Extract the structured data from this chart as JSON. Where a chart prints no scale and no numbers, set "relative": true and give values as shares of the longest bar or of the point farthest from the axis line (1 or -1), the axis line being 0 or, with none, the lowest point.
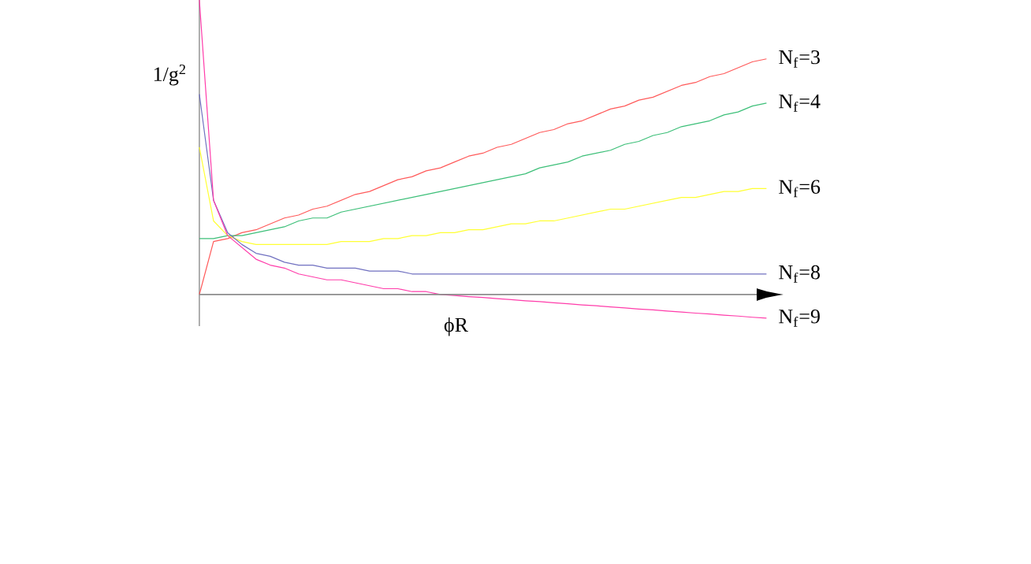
{
  "chart_data": {
    "type": "line",
    "relative": true,
    "xlabel": "ϕR",
    "ylabel": "1/g$^{2}$",
    "categories": [
      null,
      null,
      null,
      null,
      null,
      null,
      null,
      null,
      null,
      null,
      null,
      null,
      null,
      null,
      null,
      null,
      null,
      null,
      null,
      null,
      null,
      null,
      null,
      null,
      null,
      null,
      null,
      null,
      null,
      null,
      null,
      null,
      null,
      null,
      null,
      null,
      null,
      null,
      null,
      null,
      null
    ],
    "series": [
      {
        "name": "N$_{f}$=3",
        "color": "#ff5a5a",
        "values": [
          0,
          0.18,
          0.19,
          0.21,
          0.22,
          0.24,
          0.26,
          0.27,
          0.29,
          0.3,
          0.32,
          0.34,
          0.35,
          0.37,
          0.39,
          0.4,
          0.42,
          0.43,
          0.45,
          0.47,
          0.48,
          0.5,
          0.51,
          0.53,
          0.55,
          0.56,
          0.58,
          0.59,
          0.61,
          0.63,
          0.64,
          0.66,
          0.67,
          0.69,
          0.71,
          0.72,
          0.74,
          0.75,
          0.77,
          0.79,
          0.8
        ]
      },
      {
        "name": "N$_{f}$=4",
        "color": "#3cbf78",
        "values": [
          0.19,
          0.19,
          0.2,
          0.2,
          0.21,
          0.22,
          0.23,
          0.25,
          0.26,
          0.26,
          0.28,
          0.29,
          0.3,
          0.31,
          0.32,
          0.33,
          0.34,
          0.35,
          0.36,
          0.37,
          0.38,
          0.39,
          0.4,
          0.41,
          0.43,
          0.44,
          0.45,
          0.47,
          0.48,
          0.49,
          0.51,
          0.52,
          0.54,
          0.55,
          0.57,
          0.58,
          0.59,
          0.61,
          0.62,
          0.64,
          0.65
        ]
      },
      {
        "name": "N$_{f}$=6",
        "color": "#ffff33",
        "values": [
          0.5,
          0.25,
          0.2,
          0.18,
          0.17,
          0.17,
          0.17,
          0.17,
          0.17,
          0.17,
          0.18,
          0.18,
          0.18,
          0.19,
          0.19,
          0.2,
          0.2,
          0.21,
          0.21,
          0.22,
          0.22,
          0.23,
          0.24,
          0.24,
          0.25,
          0.25,
          0.26,
          0.27,
          0.28,
          0.29,
          0.29,
          0.3,
          0.31,
          0.32,
          0.33,
          0.33,
          0.34,
          0.35,
          0.35,
          0.36,
          0.36
        ]
      },
      {
        "name": "N$_{f}$=8",
        "color": "#7070c0",
        "values": [
          0.68,
          0.32,
          0.21,
          0.17,
          0.14,
          0.13,
          0.11,
          0.1,
          0.1,
          0.09,
          0.09,
          0.09,
          0.08,
          0.08,
          0.08,
          0.07,
          0.07,
          0.07,
          0.07,
          0.07,
          0.07,
          0.07,
          0.07,
          0.07,
          0.07,
          0.07,
          0.07,
          0.07,
          0.07,
          0.07,
          0.07,
          0.07,
          0.07,
          0.07,
          0.07,
          0.07,
          0.07,
          0.07,
          0.07,
          0.07,
          0.07
        ]
      },
      {
        "name": "N$_{f}$=9",
        "color": "#ff3caa",
        "values": [
          1.0,
          0.32,
          0.2,
          0.16,
          0.12,
          0.1,
          0.09,
          0.07,
          0.06,
          0.05,
          0.05,
          0.04,
          0.03,
          0.02,
          0.02,
          0.01,
          0.01,
          0,
          -0.003,
          -0.007,
          -0.01,
          -0.014,
          -0.017,
          -0.021,
          -0.024,
          -0.028,
          -0.031,
          -0.035,
          -0.038,
          -0.042,
          -0.045,
          -0.049,
          -0.052,
          -0.056,
          -0.059,
          -0.063,
          -0.066,
          -0.07,
          -0.073,
          -0.077,
          -0.08
        ]
      }
    ]
  }
}
